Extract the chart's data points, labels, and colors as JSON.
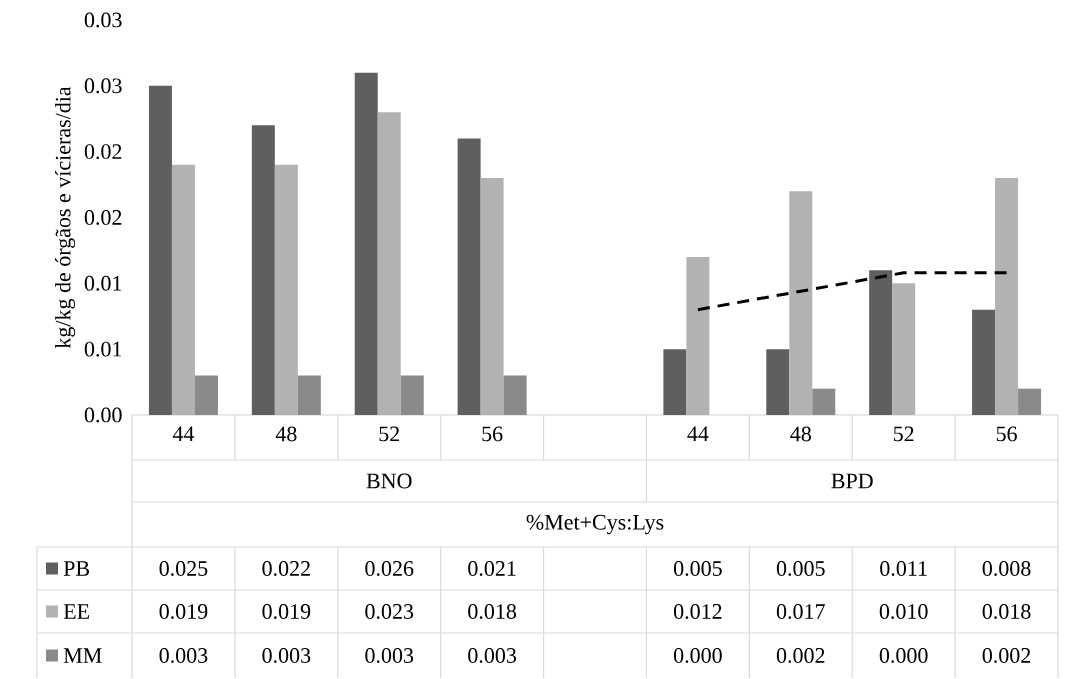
{
  "chart_data": {
    "type": "bar",
    "ylabel": "kg/kg de órgãos e vícieras/dia",
    "categories": [
      "44",
      "48",
      "52",
      "56",
      null,
      "44",
      "48",
      "52",
      "56"
    ],
    "annotations": [
      "BNO",
      "BPD",
      "%Met+Cys:Lys"
    ],
    "series": [
      {
        "name": "PB",
        "color": "#5f5f5f",
        "values": [
          0.025,
          0.022,
          0.026,
          0.021,
          null,
          0.005,
          0.005,
          0.011,
          0.008
        ],
        "value_labels": [
          "0.025",
          "0.022",
          "0.026",
          "0.021",
          null,
          "0.005",
          "0.005",
          "0.011",
          "0.008"
        ]
      },
      {
        "name": "EE",
        "color": "#b2b2b2",
        "values": [
          0.019,
          0.019,
          0.023,
          0.018,
          null,
          0.012,
          0.017,
          0.01,
          0.018
        ],
        "value_labels": [
          "0.019",
          "0.019",
          "0.023",
          "0.018",
          null,
          "0.012",
          "0.017",
          "0.010",
          "0.018"
        ]
      },
      {
        "name": "MM",
        "color": "#8a8a8a",
        "values": [
          0.003,
          0.003,
          0.003,
          0.003,
          null,
          0.0,
          0.002,
          0.0,
          0.002
        ],
        "value_labels": [
          "0.003",
          "0.003",
          "0.003",
          "0.003",
          null,
          "0.000",
          "0.002",
          "0.000",
          "0.002"
        ]
      },
      {
        "type": "line",
        "color": "#000000",
        "line_style": "dashed",
        "marker": "none",
        "values": [
          null,
          null,
          null,
          null,
          null,
          0.008,
          0.0094,
          0.0108,
          0.0108
        ]
      }
    ],
    "ylim": [
      0,
      0.03
    ],
    "yticks": [
      {
        "value": 0,
        "label": "0.00"
      },
      {
        "value": 0.005,
        "label": "0.01"
      },
      {
        "value": 0.01,
        "label": "0.01"
      },
      {
        "value": 0.015,
        "label": "0.02"
      },
      {
        "value": 0.02,
        "label": "0.02"
      },
      {
        "value": 0.025,
        "label": "0.03"
      },
      {
        "value": 0.03,
        "label": "0.03"
      }
    ],
    "grid": false,
    "legend": "bottom"
  }
}
